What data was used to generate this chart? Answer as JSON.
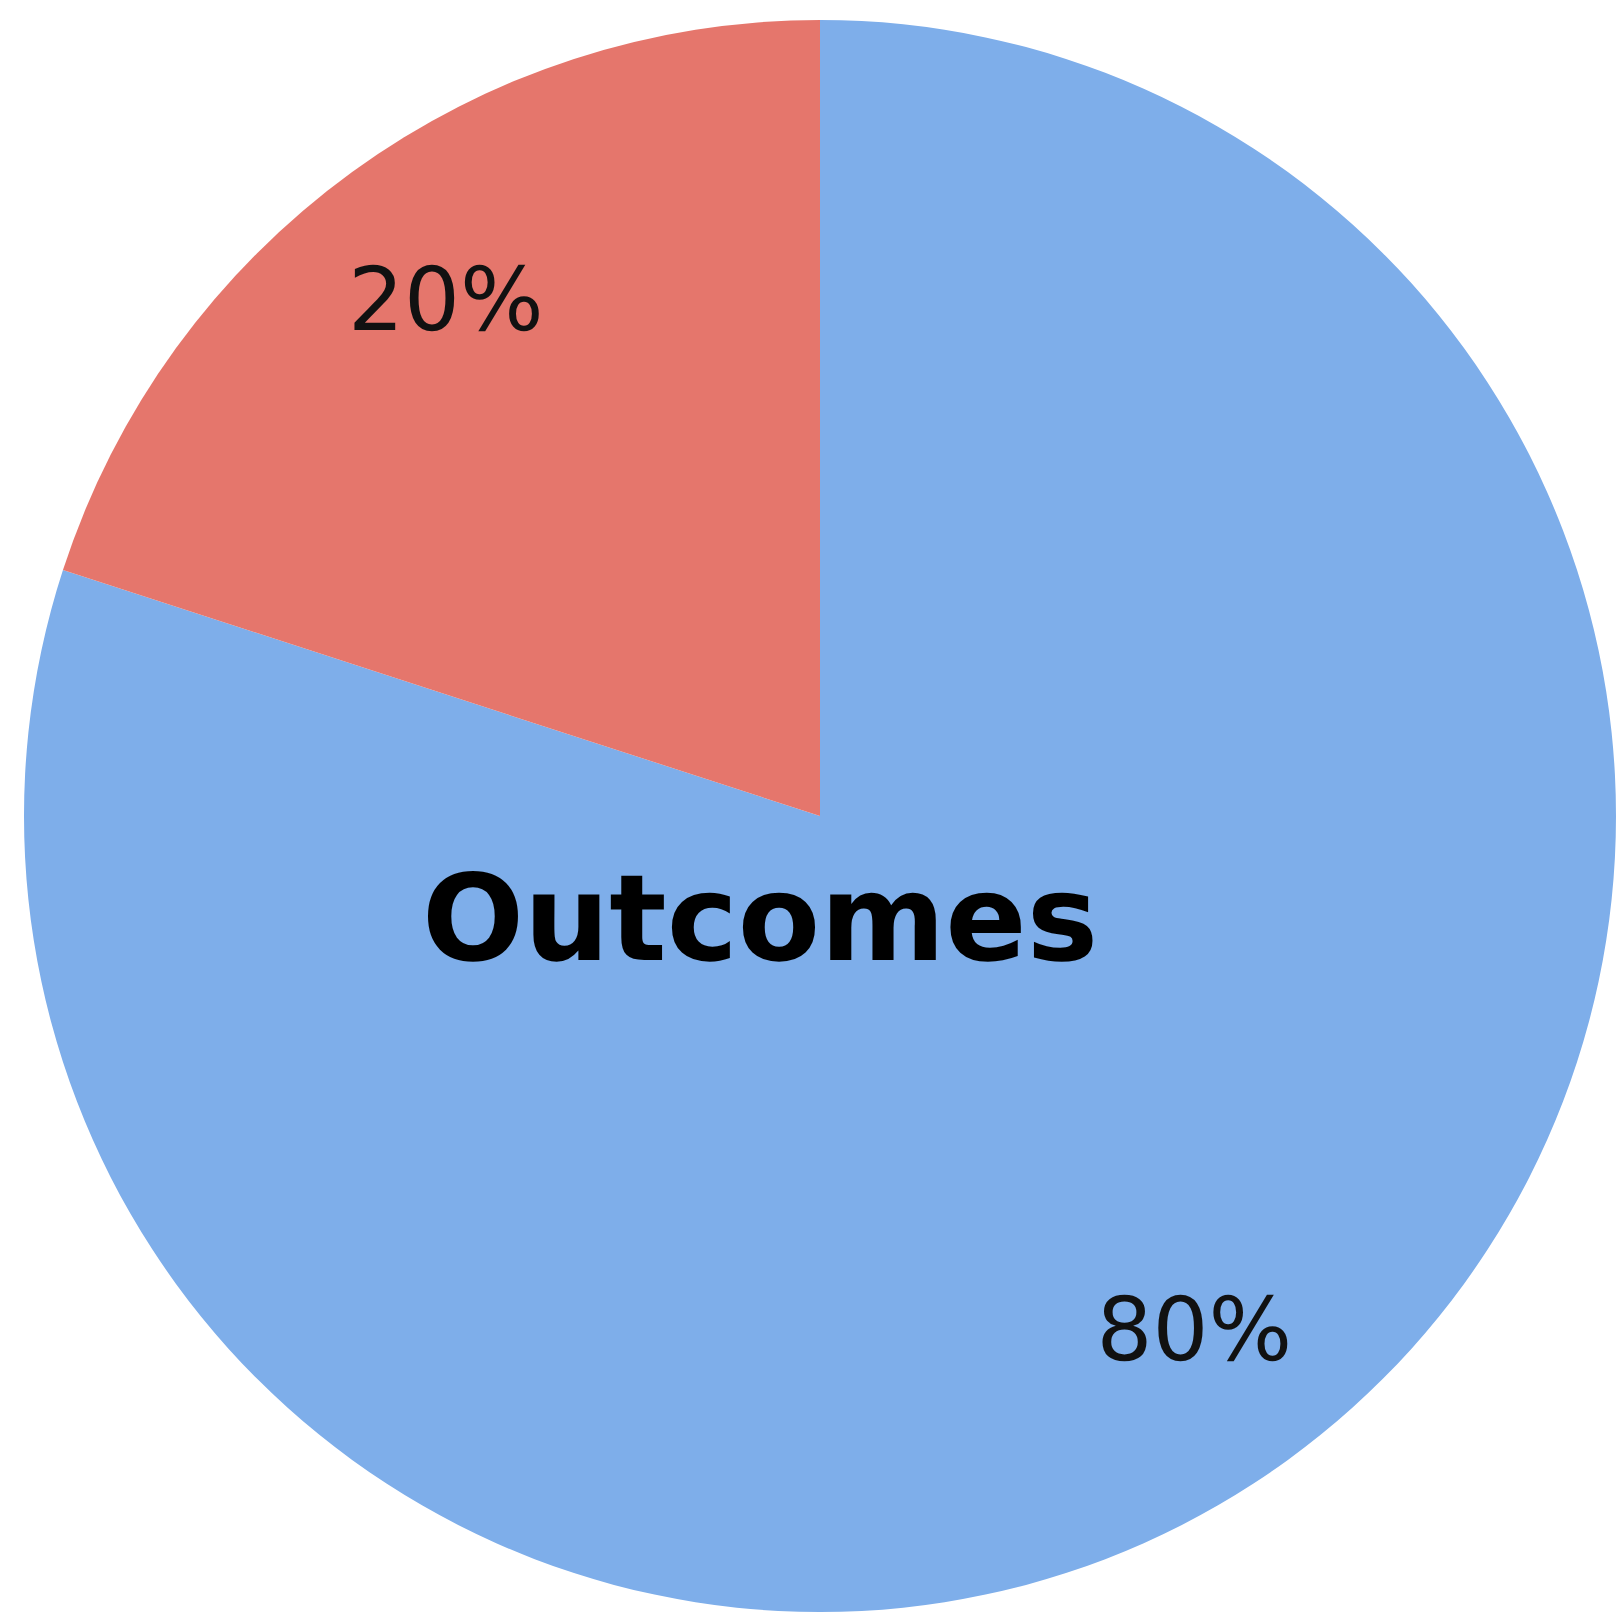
{
  "chart_data": {
    "type": "pie",
    "title": "Outcomes",
    "categories": [
      null,
      null
    ],
    "values": [
      80,
      20
    ],
    "colors": [
      "#7eaeea",
      "#e5766c"
    ],
    "value_labels": [
      "80%",
      "20%"
    ]
  }
}
